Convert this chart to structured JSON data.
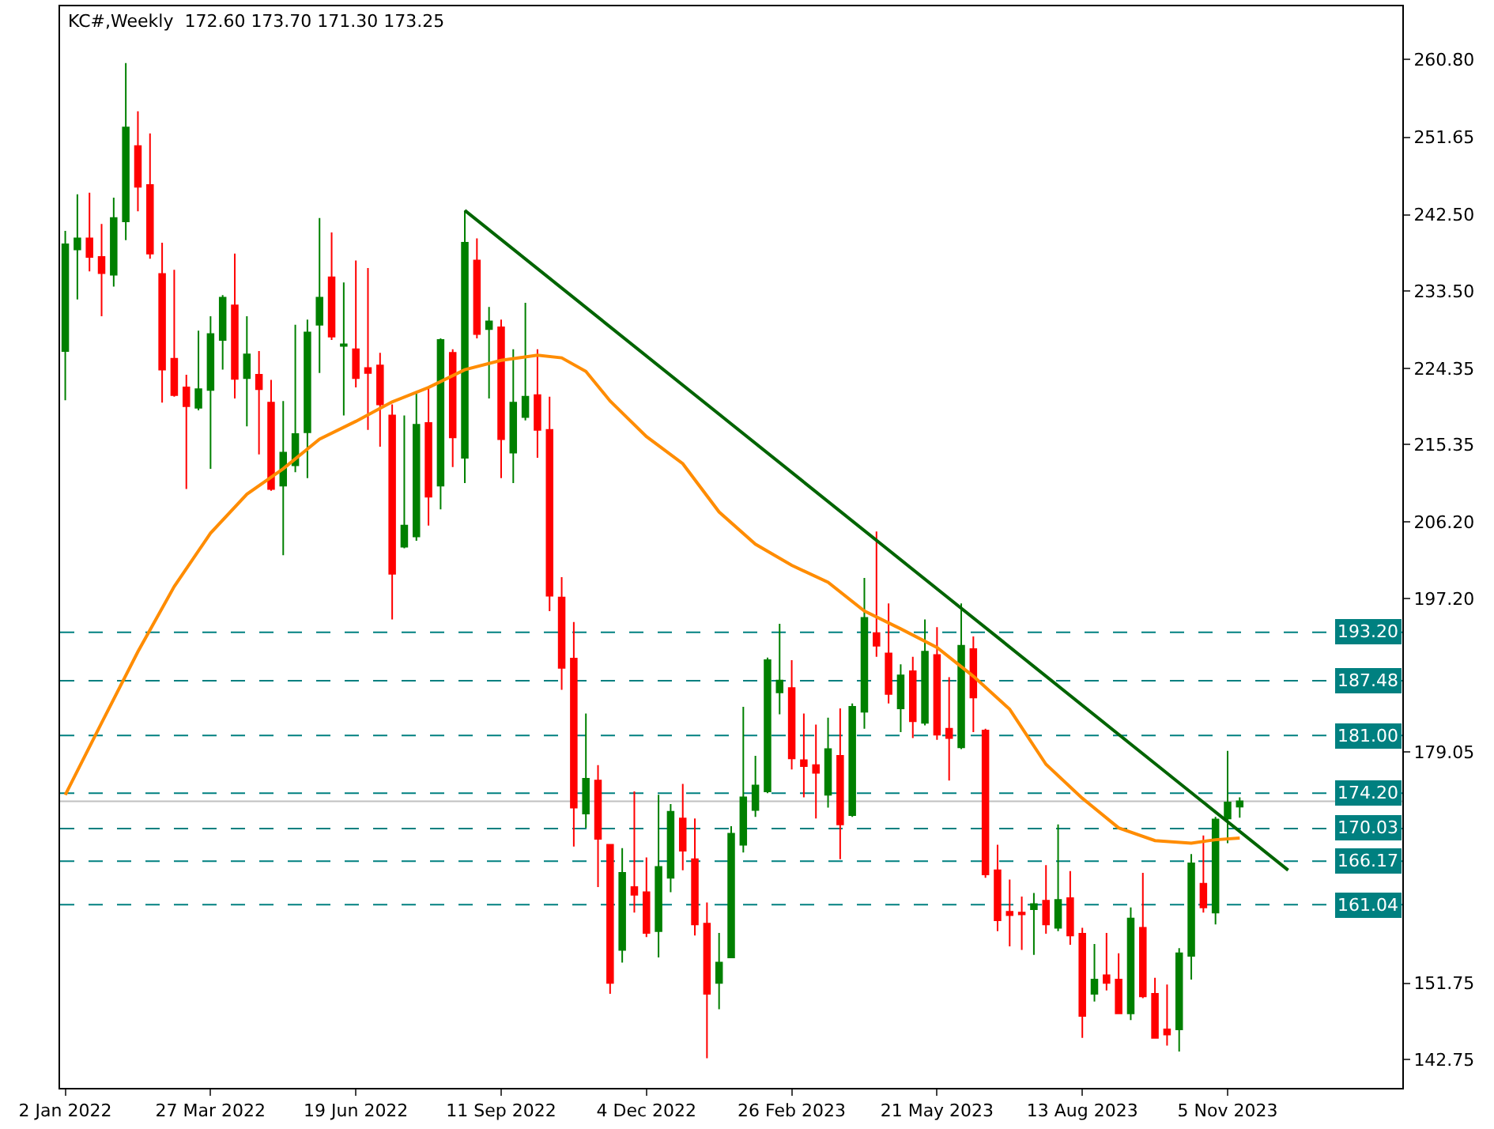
{
  "chart_data": {
    "type": "candlestick",
    "title": "KC#,Weekly  172.60 173.70 171.30 173.25",
    "colors": [
      "#008000",
      "#008000",
      "#ff0000",
      "#ff0000",
      "#008000",
      "#008000",
      "#ff0000",
      "#ff0000",
      "#ff0000",
      "#ff0000",
      "#ff0000",
      "#008000",
      "#008000",
      "#008000",
      "#ff0000",
      "#008000",
      "#ff0000",
      "#ff0000",
      "#008000",
      "#008000",
      "#008000",
      "#008000",
      "#ff0000",
      "#008000",
      "#ff0000",
      "#ff0000",
      "#ff0000",
      "#ff0000",
      "#008000",
      "#008000",
      "#ff0000",
      "#008000",
      "#ff0000",
      "#008000",
      "#ff0000",
      "#008000",
      "#ff0000",
      "#008000",
      "#008000",
      "#ff0000",
      "#ff0000",
      "#ff0000",
      "#ff0000",
      "#008000",
      "#ff0000",
      "#ff0000",
      "#008000",
      "#ff0000",
      "#ff0000",
      "#008000",
      "#008000",
      "#ff0000",
      "#ff0000",
      "#ff0000",
      "#008000",
      "#008000",
      "#008000",
      "#008000",
      "#008000",
      "#008000",
      "#ff0000",
      "#ff0000",
      "#ff0000",
      "#008000",
      "#ff0000",
      "#008000",
      "#008000",
      "#ff0000",
      "#ff0000",
      "#008000",
      "#ff0000",
      "#008000",
      "#ff0000",
      "#ff0000",
      "#008000",
      "#ff0000",
      "#ff0000",
      "#ff0000",
      "#ff0000",
      "#ff0000",
      "#008000",
      "#ff0000",
      "#008000",
      "#ff0000",
      "#ff0000",
      "#008000",
      "#ff0000",
      "#ff0000",
      "#008000",
      "#ff0000",
      "#ff0000",
      "#ff0000",
      "#008000",
      "#008000",
      "#ff0000",
      "#008000",
      "#008000",
      "#008000"
    ],
    "x": [
      "2022-01-02",
      "2022-01-09",
      "2022-01-16",
      "2022-01-23",
      "2022-01-30",
      "2022-02-06",
      "2022-02-13",
      "2022-02-20",
      "2022-02-27",
      "2022-03-06",
      "2022-03-13",
      "2022-03-20",
      "2022-03-27",
      "2022-04-03",
      "2022-04-10",
      "2022-04-17",
      "2022-04-24",
      "2022-05-01",
      "2022-05-08",
      "2022-05-15",
      "2022-05-22",
      "2022-05-29",
      "2022-06-05",
      "2022-06-12",
      "2022-06-19",
      "2022-06-26",
      "2022-07-03",
      "2022-07-10",
      "2022-07-17",
      "2022-07-24",
      "2022-07-31",
      "2022-08-07",
      "2022-08-14",
      "2022-08-21",
      "2022-08-28",
      "2022-09-04",
      "2022-09-11",
      "2022-09-18",
      "2022-09-25",
      "2022-10-02",
      "2022-10-09",
      "2022-10-16",
      "2022-10-23",
      "2022-10-30",
      "2022-11-06",
      "2022-11-13",
      "2022-11-20",
      "2022-11-27",
      "2022-12-04",
      "2022-12-11",
      "2022-12-18",
      "2022-12-25",
      "2023-01-01",
      "2023-01-08",
      "2023-01-15",
      "2023-01-22",
      "2023-01-29",
      "2023-02-05",
      "2023-02-12",
      "2023-02-19",
      "2023-02-26",
      "2023-03-05",
      "2023-03-12",
      "2023-03-19",
      "2023-03-26",
      "2023-04-02",
      "2023-04-09",
      "2023-04-16",
      "2023-04-23",
      "2023-04-30",
      "2023-05-07",
      "2023-05-14",
      "2023-05-21",
      "2023-05-28",
      "2023-06-04",
      "2023-06-11",
      "2023-06-18",
      "2023-06-25",
      "2023-07-02",
      "2023-07-09",
      "2023-07-16",
      "2023-07-23",
      "2023-07-30",
      "2023-08-06",
      "2023-08-13",
      "2023-08-20",
      "2023-08-27",
      "2023-09-03",
      "2023-09-10",
      "2023-09-17",
      "2023-09-24",
      "2023-10-01",
      "2023-10-08",
      "2023-10-15",
      "2023-10-22",
      "2023-10-29",
      "2023-11-05",
      "2023-11-12"
    ],
    "ohlc": [
      [
        226.4,
        240.6,
        220.6,
        239.0
      ],
      [
        238.4,
        244.9,
        232.5,
        239.7
      ],
      [
        239.7,
        245.1,
        235.8,
        237.5
      ],
      [
        237.5,
        241.4,
        230.5,
        235.6
      ],
      [
        235.4,
        244.5,
        234.0,
        242.1
      ],
      [
        241.7,
        260.4,
        239.5,
        252.8
      ],
      [
        250.6,
        254.7,
        242.9,
        245.8
      ],
      [
        246.0,
        252.1,
        237.3,
        237.9
      ],
      [
        235.5,
        239.2,
        220.3,
        224.2
      ],
      [
        225.5,
        236.0,
        221.0,
        221.2
      ],
      [
        222.1,
        223.6,
        210.1,
        219.9
      ],
      [
        219.7,
        228.8,
        219.4,
        221.9
      ],
      [
        221.8,
        230.5,
        212.5,
        228.4
      ],
      [
        227.7,
        233.0,
        224.2,
        232.7
      ],
      [
        231.8,
        237.9,
        220.8,
        223.1
      ],
      [
        223.2,
        230.5,
        217.5,
        226.0
      ],
      [
        223.6,
        226.4,
        214.2,
        221.9
      ],
      [
        220.3,
        223.0,
        209.9,
        210.1
      ],
      [
        210.5,
        220.5,
        202.3,
        214.4
      ],
      [
        212.9,
        229.5,
        212.1,
        216.6
      ],
      [
        216.8,
        230.1,
        211.4,
        228.6
      ],
      [
        229.5,
        242.1,
        223.8,
        232.7
      ],
      [
        235.1,
        240.4,
        227.7,
        228.1
      ],
      [
        227.0,
        234.5,
        218.8,
        227.2
      ],
      [
        226.6,
        237.1,
        222.1,
        223.2
      ],
      [
        224.4,
        236.2,
        217.1,
        223.8
      ],
      [
        224.7,
        226.2,
        215.1,
        220.1
      ],
      [
        218.8,
        220.1,
        194.7,
        200.1
      ],
      [
        203.3,
        218.8,
        203.1,
        205.8
      ],
      [
        204.5,
        221.6,
        204.0,
        217.7
      ],
      [
        217.9,
        222.1,
        205.8,
        209.2
      ],
      [
        210.5,
        227.9,
        207.7,
        227.7
      ],
      [
        226.2,
        226.6,
        212.7,
        216.2
      ],
      [
        213.8,
        243.0,
        210.8,
        239.2
      ],
      [
        237.1,
        239.7,
        227.9,
        228.4
      ],
      [
        229.0,
        231.6,
        220.8,
        229.9
      ],
      [
        229.2,
        230.1,
        211.4,
        216.0
      ],
      [
        214.4,
        226.6,
        210.8,
        220.3
      ],
      [
        218.6,
        232.1,
        218.2,
        221.0
      ],
      [
        221.2,
        226.6,
        213.8,
        217.1
      ],
      [
        217.1,
        221.0,
        195.7,
        197.5
      ],
      [
        197.3,
        199.7,
        186.4,
        189.0
      ],
      [
        190.1,
        194.4,
        167.9,
        172.5
      ],
      [
        171.8,
        183.6,
        170.1,
        175.9
      ],
      [
        175.7,
        177.5,
        163.1,
        168.8
      ],
      [
        168.1,
        168.1,
        150.5,
        151.8
      ],
      [
        155.7,
        167.7,
        154.2,
        164.8
      ],
      [
        163.1,
        174.4,
        160.1,
        162.2
      ],
      [
        162.5,
        166.6,
        157.2,
        157.7
      ],
      [
        157.9,
        174.0,
        154.8,
        165.5
      ],
      [
        164.2,
        172.9,
        162.5,
        172.0
      ],
      [
        171.2,
        175.3,
        165.1,
        167.4
      ],
      [
        166.4,
        171.2,
        157.4,
        158.7
      ],
      [
        158.8,
        161.3,
        142.9,
        150.5
      ],
      [
        151.8,
        157.7,
        148.7,
        154.2
      ],
      [
        154.8,
        170.3,
        154.8,
        169.4
      ],
      [
        168.1,
        184.4,
        167.2,
        173.7
      ],
      [
        172.2,
        178.6,
        171.4,
        175.1
      ],
      [
        174.4,
        190.2,
        174.2,
        189.9
      ],
      [
        186.1,
        194.2,
        183.5,
        187.5
      ],
      [
        186.6,
        189.9,
        177.0,
        178.3
      ],
      [
        178.1,
        183.6,
        173.7,
        177.4
      ],
      [
        177.5,
        182.3,
        171.2,
        176.6
      ],
      [
        174.0,
        183.1,
        172.5,
        179.4
      ],
      [
        178.6,
        184.2,
        166.4,
        170.5
      ],
      [
        171.6,
        184.8,
        171.4,
        184.4
      ],
      [
        183.8,
        199.6,
        181.8,
        194.9
      ],
      [
        193.1,
        205.1,
        190.3,
        191.6
      ],
      [
        190.7,
        196.6,
        184.8,
        185.9
      ],
      [
        184.2,
        189.4,
        181.4,
        188.1
      ],
      [
        188.6,
        190.3,
        180.7,
        182.7
      ],
      [
        182.5,
        194.7,
        182.2,
        190.9
      ],
      [
        190.5,
        193.8,
        180.5,
        181.1
      ],
      [
        181.8,
        187.9,
        175.7,
        180.7
      ],
      [
        179.6,
        196.6,
        179.4,
        191.6
      ],
      [
        191.2,
        192.7,
        181.4,
        185.5
      ],
      [
        181.6,
        181.8,
        164.2,
        164.6
      ],
      [
        165.1,
        168.1,
        157.9,
        159.2
      ],
      [
        160.2,
        164.0,
        156.1,
        159.8
      ],
      [
        160.1,
        162.0,
        155.7,
        159.9
      ],
      [
        160.5,
        162.4,
        155.1,
        161.1
      ],
      [
        161.5,
        165.7,
        157.6,
        158.7
      ],
      [
        158.3,
        170.5,
        157.9,
        161.6
      ],
      [
        161.8,
        165.0,
        156.3,
        157.4
      ],
      [
        157.6,
        158.3,
        145.3,
        147.9
      ],
      [
        150.5,
        156.4,
        149.6,
        152.2
      ],
      [
        152.7,
        157.7,
        150.9,
        151.8
      ],
      [
        152.2,
        155.3,
        148.1,
        148.2
      ],
      [
        148.2,
        160.7,
        147.4,
        159.4
      ],
      [
        158.3,
        164.8,
        150.0,
        150.2
      ],
      [
        150.5,
        152.4,
        145.2,
        145.3
      ],
      [
        146.3,
        151.6,
        144.4,
        145.7
      ],
      [
        146.3,
        155.9,
        143.7,
        155.3
      ],
      [
        155.0,
        167.0,
        152.2,
        165.9
      ],
      [
        163.5,
        169.2,
        160.1,
        160.7
      ],
      [
        160.1,
        171.4,
        158.7,
        171.1
      ],
      [
        171.2,
        179.2,
        168.3,
        173.1
      ],
      [
        172.6,
        173.7,
        171.3,
        173.25
      ]
    ],
    "series": [
      {
        "type": "line",
        "color": "#ff8c00",
        "x": [
          "2022-01-02",
          "2022-01-23",
          "2022-02-13",
          "2022-03-06",
          "2022-03-27",
          "2022-04-17",
          "2022-05-08",
          "2022-05-29",
          "2022-06-19",
          "2022-07-10",
          "2022-07-31",
          "2022-08-21",
          "2022-09-11",
          "2022-10-02",
          "2022-10-16",
          "2022-10-30",
          "2022-11-13",
          "2022-12-04",
          "2022-12-25",
          "2023-01-15",
          "2023-02-05",
          "2023-02-26",
          "2023-03-19",
          "2023-04-09",
          "2023-04-30",
          "2023-05-21",
          "2023-06-11",
          "2023-07-02",
          "2023-07-23",
          "2023-08-13",
          "2023-09-03",
          "2023-09-24",
          "2023-10-15",
          "2023-10-29",
          "2023-11-12"
        ],
        "values": [
          174.0,
          182.5,
          190.9,
          198.6,
          204.9,
          209.5,
          212.5,
          216.0,
          218.1,
          220.4,
          222.1,
          224.2,
          225.3,
          225.9,
          225.6,
          224.0,
          220.5,
          216.3,
          213.1,
          207.4,
          203.6,
          201.1,
          199.1,
          195.7,
          193.6,
          191.4,
          188.0,
          184.1,
          177.6,
          173.6,
          170.1,
          168.6,
          168.3,
          168.7,
          168.9
        ]
      },
      {
        "type": "line",
        "color": "#006400",
        "x": [
          "2022-08-21",
          "2023-12-10"
        ],
        "values": [
          243.0,
          165.1
        ]
      }
    ],
    "ref_lines": [
      {
        "axis": "y",
        "value": 193.2,
        "label": "193.20",
        "color": "#008080",
        "line_style": "dashed"
      },
      {
        "axis": "y",
        "value": 187.48,
        "label": "187.48",
        "color": "#008080",
        "line_style": "dashed"
      },
      {
        "axis": "y",
        "value": 181.0,
        "label": "181.00",
        "color": "#008080",
        "line_style": "dashed"
      },
      {
        "axis": "y",
        "value": 174.2,
        "label": "174.20",
        "color": "#008080",
        "line_style": "dashed"
      },
      {
        "axis": "y",
        "value": 170.03,
        "label": "170.03",
        "color": "#008080",
        "line_style": "dashed"
      },
      {
        "axis": "y",
        "value": 166.17,
        "label": "166.17",
        "color": "#008080",
        "line_style": "dashed"
      },
      {
        "axis": "y",
        "value": 161.04,
        "label": "161.04",
        "color": "#008080",
        "line_style": "dashed"
      },
      {
        "axis": "y",
        "value": 173.25,
        "color": "#c0c0c0",
        "line_style": "solid"
      }
    ],
    "xlim": [
      "2021-12-30",
      "2024-02-14"
    ],
    "xticks": [
      {
        "value": "2022-01-02",
        "label": "2 Jan 2022"
      },
      {
        "value": "2022-03-27",
        "label": "27 Mar 2022"
      },
      {
        "value": "2022-06-19",
        "label": "19 Jun 2022"
      },
      {
        "value": "2022-09-11",
        "label": "11 Sep 2022"
      },
      {
        "value": "2022-12-04",
        "label": "4 Dec 2022"
      },
      {
        "value": "2023-02-26",
        "label": "26 Feb 2023"
      },
      {
        "value": "2023-05-21",
        "label": "21 May 2023"
      },
      {
        "value": "2023-08-13",
        "label": "13 Aug 2023"
      },
      {
        "value": "2023-11-05",
        "label": "5 Nov 2023"
      }
    ],
    "ylim": [
      139.4,
      267.1
    ],
    "yticks": [
      {
        "value": 260.8,
        "label": "260.80"
      },
      {
        "value": 251.65,
        "label": "251.65"
      },
      {
        "value": 242.5,
        "label": "242.50"
      },
      {
        "value": 233.5,
        "label": "233.50"
      },
      {
        "value": 224.35,
        "label": "224.35"
      },
      {
        "value": 215.35,
        "label": "215.35"
      },
      {
        "value": 206.2,
        "label": "206.20"
      },
      {
        "value": 197.2,
        "label": "197.20"
      },
      {
        "value": 179.05,
        "label": "179.05"
      },
      {
        "value": 151.75,
        "label": "151.75"
      },
      {
        "value": 142.75,
        "label": "142.75"
      }
    ],
    "tick_labels": true
  }
}
